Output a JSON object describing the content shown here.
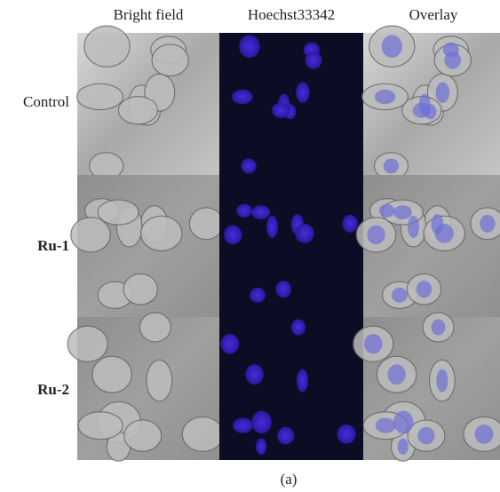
{
  "column_headers": [
    "Bright field",
    "Hoechst33342",
    "Overlay"
  ],
  "row_labels": [
    "Control",
    "Ru-1",
    "Ru-2"
  ],
  "caption": "(a)"
}
